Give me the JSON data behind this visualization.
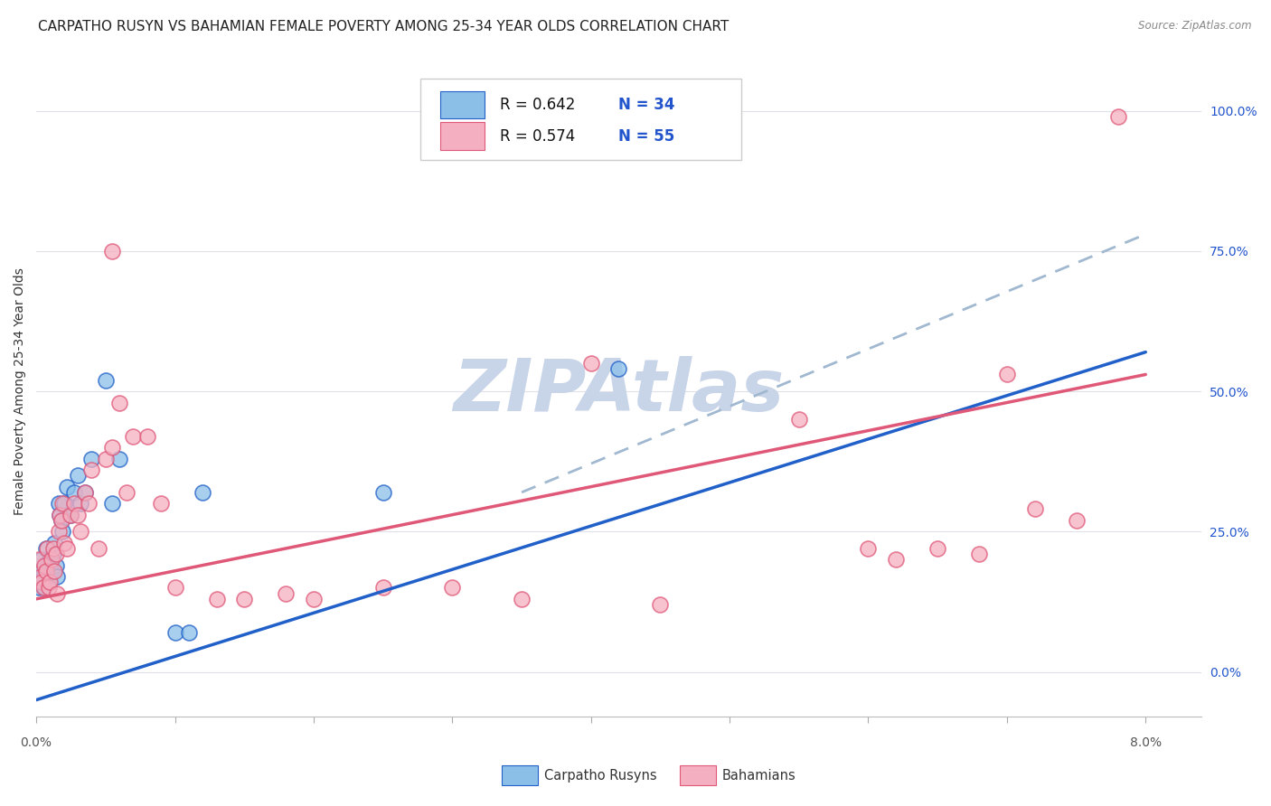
{
  "title": "CARPATHO RUSYN VS BAHAMIAN FEMALE POVERTY AMONG 25-34 YEAR OLDS CORRELATION CHART",
  "source": "Source: ZipAtlas.com",
  "ylabel": "Female Poverty Among 25-34 Year Olds",
  "xlim": [
    0.0,
    8.4
  ],
  "ylim": [
    -8,
    108
  ],
  "yticks": [
    0,
    25,
    50,
    75,
    100
  ],
  "ytick_labels": [
    "0.0%",
    "25.0%",
    "50.0%",
    "75.0%",
    "100.0%"
  ],
  "legend_blue_r": "R = 0.642",
  "legend_blue_n": "N = 34",
  "legend_pink_r": "R = 0.574",
  "legend_pink_n": "N = 55",
  "legend_label_blue": "Carpatho Rusyns",
  "legend_label_pink": "Bahamians",
  "blue_color": "#8bbfe8",
  "pink_color": "#f4afc0",
  "blue_line_color": "#2060c8",
  "blue_dash_color": "#a0b8d0",
  "pink_line_color": "#e05878",
  "blue_scatter": [
    [
      0.02,
      15
    ],
    [
      0.03,
      18
    ],
    [
      0.04,
      20
    ],
    [
      0.05,
      17
    ],
    [
      0.06,
      15
    ],
    [
      0.07,
      22
    ],
    [
      0.08,
      19
    ],
    [
      0.09,
      16
    ],
    [
      0.1,
      20
    ],
    [
      0.11,
      18
    ],
    [
      0.12,
      21
    ],
    [
      0.13,
      23
    ],
    [
      0.14,
      19
    ],
    [
      0.15,
      17
    ],
    [
      0.16,
      30
    ],
    [
      0.17,
      28
    ],
    [
      0.18,
      27
    ],
    [
      0.19,
      25
    ],
    [
      0.2,
      30
    ],
    [
      0.22,
      33
    ],
    [
      0.25,
      28
    ],
    [
      0.27,
      32
    ],
    [
      0.3,
      35
    ],
    [
      0.32,
      30
    ],
    [
      0.35,
      32
    ],
    [
      0.4,
      38
    ],
    [
      0.5,
      52
    ],
    [
      0.55,
      30
    ],
    [
      0.6,
      38
    ],
    [
      1.0,
      7
    ],
    [
      1.1,
      7
    ],
    [
      1.2,
      32
    ],
    [
      2.5,
      32
    ],
    [
      4.2,
      54
    ]
  ],
  "pink_scatter": [
    [
      0.02,
      20
    ],
    [
      0.03,
      17
    ],
    [
      0.04,
      16
    ],
    [
      0.05,
      15
    ],
    [
      0.06,
      19
    ],
    [
      0.07,
      18
    ],
    [
      0.08,
      22
    ],
    [
      0.09,
      15
    ],
    [
      0.1,
      16
    ],
    [
      0.11,
      20
    ],
    [
      0.12,
      22
    ],
    [
      0.13,
      18
    ],
    [
      0.14,
      21
    ],
    [
      0.15,
      14
    ],
    [
      0.16,
      25
    ],
    [
      0.17,
      28
    ],
    [
      0.18,
      27
    ],
    [
      0.19,
      30
    ],
    [
      0.2,
      23
    ],
    [
      0.22,
      22
    ],
    [
      0.25,
      28
    ],
    [
      0.27,
      30
    ],
    [
      0.3,
      28
    ],
    [
      0.32,
      25
    ],
    [
      0.35,
      32
    ],
    [
      0.38,
      30
    ],
    [
      0.4,
      36
    ],
    [
      0.45,
      22
    ],
    [
      0.5,
      38
    ],
    [
      0.55,
      40
    ],
    [
      0.6,
      48
    ],
    [
      0.65,
      32
    ],
    [
      0.7,
      42
    ],
    [
      0.8,
      42
    ],
    [
      0.9,
      30
    ],
    [
      1.0,
      15
    ],
    [
      1.3,
      13
    ],
    [
      1.5,
      13
    ],
    [
      1.8,
      14
    ],
    [
      2.0,
      13
    ],
    [
      2.5,
      15
    ],
    [
      3.0,
      15
    ],
    [
      3.5,
      13
    ],
    [
      4.0,
      55
    ],
    [
      4.5,
      12
    ],
    [
      5.5,
      45
    ],
    [
      6.0,
      22
    ],
    [
      6.2,
      20
    ],
    [
      6.5,
      22
    ],
    [
      6.8,
      21
    ],
    [
      7.0,
      53
    ],
    [
      7.2,
      29
    ],
    [
      7.5,
      27
    ],
    [
      7.8,
      99
    ],
    [
      0.55,
      75
    ]
  ],
  "blue_trend": [
    0.0,
    -5.0,
    8.0,
    57.0
  ],
  "pink_trend": [
    0.0,
    13.0,
    8.0,
    53.0
  ],
  "blue_dash_trend": [
    3.5,
    32.0,
    8.0,
    78.0
  ],
  "watermark": "ZIPAtlas",
  "watermark_color": "#c8d4e8",
  "background_color": "#ffffff",
  "grid_color": "#e0e0e8",
  "title_fontsize": 11,
  "axis_label_fontsize": 10,
  "tick_fontsize": 10,
  "legend_fontsize": 12,
  "r_text_color": "#111111",
  "n_text_color": "#2255cc"
}
